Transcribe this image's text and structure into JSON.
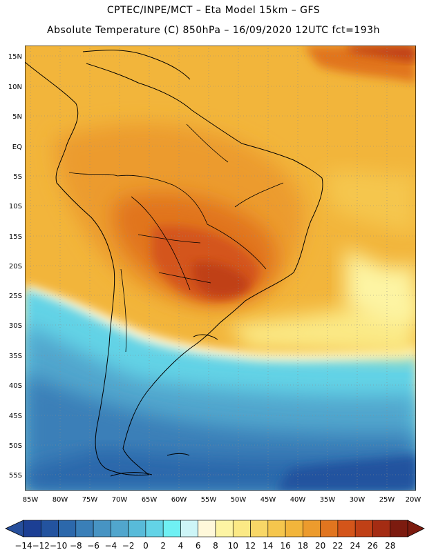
{
  "header": {
    "line1": "CPTEC/INPE/MCT –  Eta Model 15km – GFS",
    "line2": "Absolute Temperature (C) 850hPa – 16/09/2020 12UTC fct=193h"
  },
  "axes": {
    "lat_labels": [
      "15N",
      "10N",
      "5N",
      "EQ",
      "5S",
      "10S",
      "15S",
      "20S",
      "25S",
      "30S",
      "35S",
      "40S",
      "45S",
      "50S",
      "55S"
    ],
    "lon_labels": [
      "85W",
      "80W",
      "75W",
      "70W",
      "65W",
      "60W",
      "55W",
      "50W",
      "45W",
      "40W",
      "35W",
      "30W",
      "25W",
      "20W"
    ]
  },
  "colorbar": {
    "labels": [
      "-14",
      "-12",
      "-10",
      "-8",
      "-6",
      "-4",
      "-2",
      "0",
      "2",
      "4",
      "6",
      "8",
      "10",
      "12",
      "14",
      "16",
      "18",
      "20",
      "22",
      "24",
      "26",
      "28"
    ],
    "colors": [
      "#1c3f94",
      "#23539f",
      "#2c68ab",
      "#3a7fb8",
      "#4794c3",
      "#51a6cd",
      "#58bbd9",
      "#63d3e6",
      "#6ff0f3",
      "#cdf5f7",
      "#fff8da",
      "#fdf4a3",
      "#fbe985",
      "#f8d767",
      "#f5c64d",
      "#f2b53b",
      "#ec9b2d",
      "#e1751f",
      "#d4551a",
      "#c04016",
      "#a42c13",
      "#7c1b0f"
    ],
    "under_color": "#274f9c",
    "over_color": "#7c1b0f"
  },
  "chart_data": {
    "type": "heatmap",
    "title": "Absolute Temperature (C) 850hPa – 16/09/2020 12UTC fct=193h",
    "variable": "Absolute Temperature (C) 850hPa",
    "model": "Eta Model 15km – GFS",
    "date": "16/09/2020 12UTC",
    "forecast_hours": 193,
    "lon_range": [
      -85,
      -20
    ],
    "lat_range": [
      -57,
      17
    ],
    "scale_min": -14,
    "scale_max": 28,
    "scale_step": 2
  }
}
